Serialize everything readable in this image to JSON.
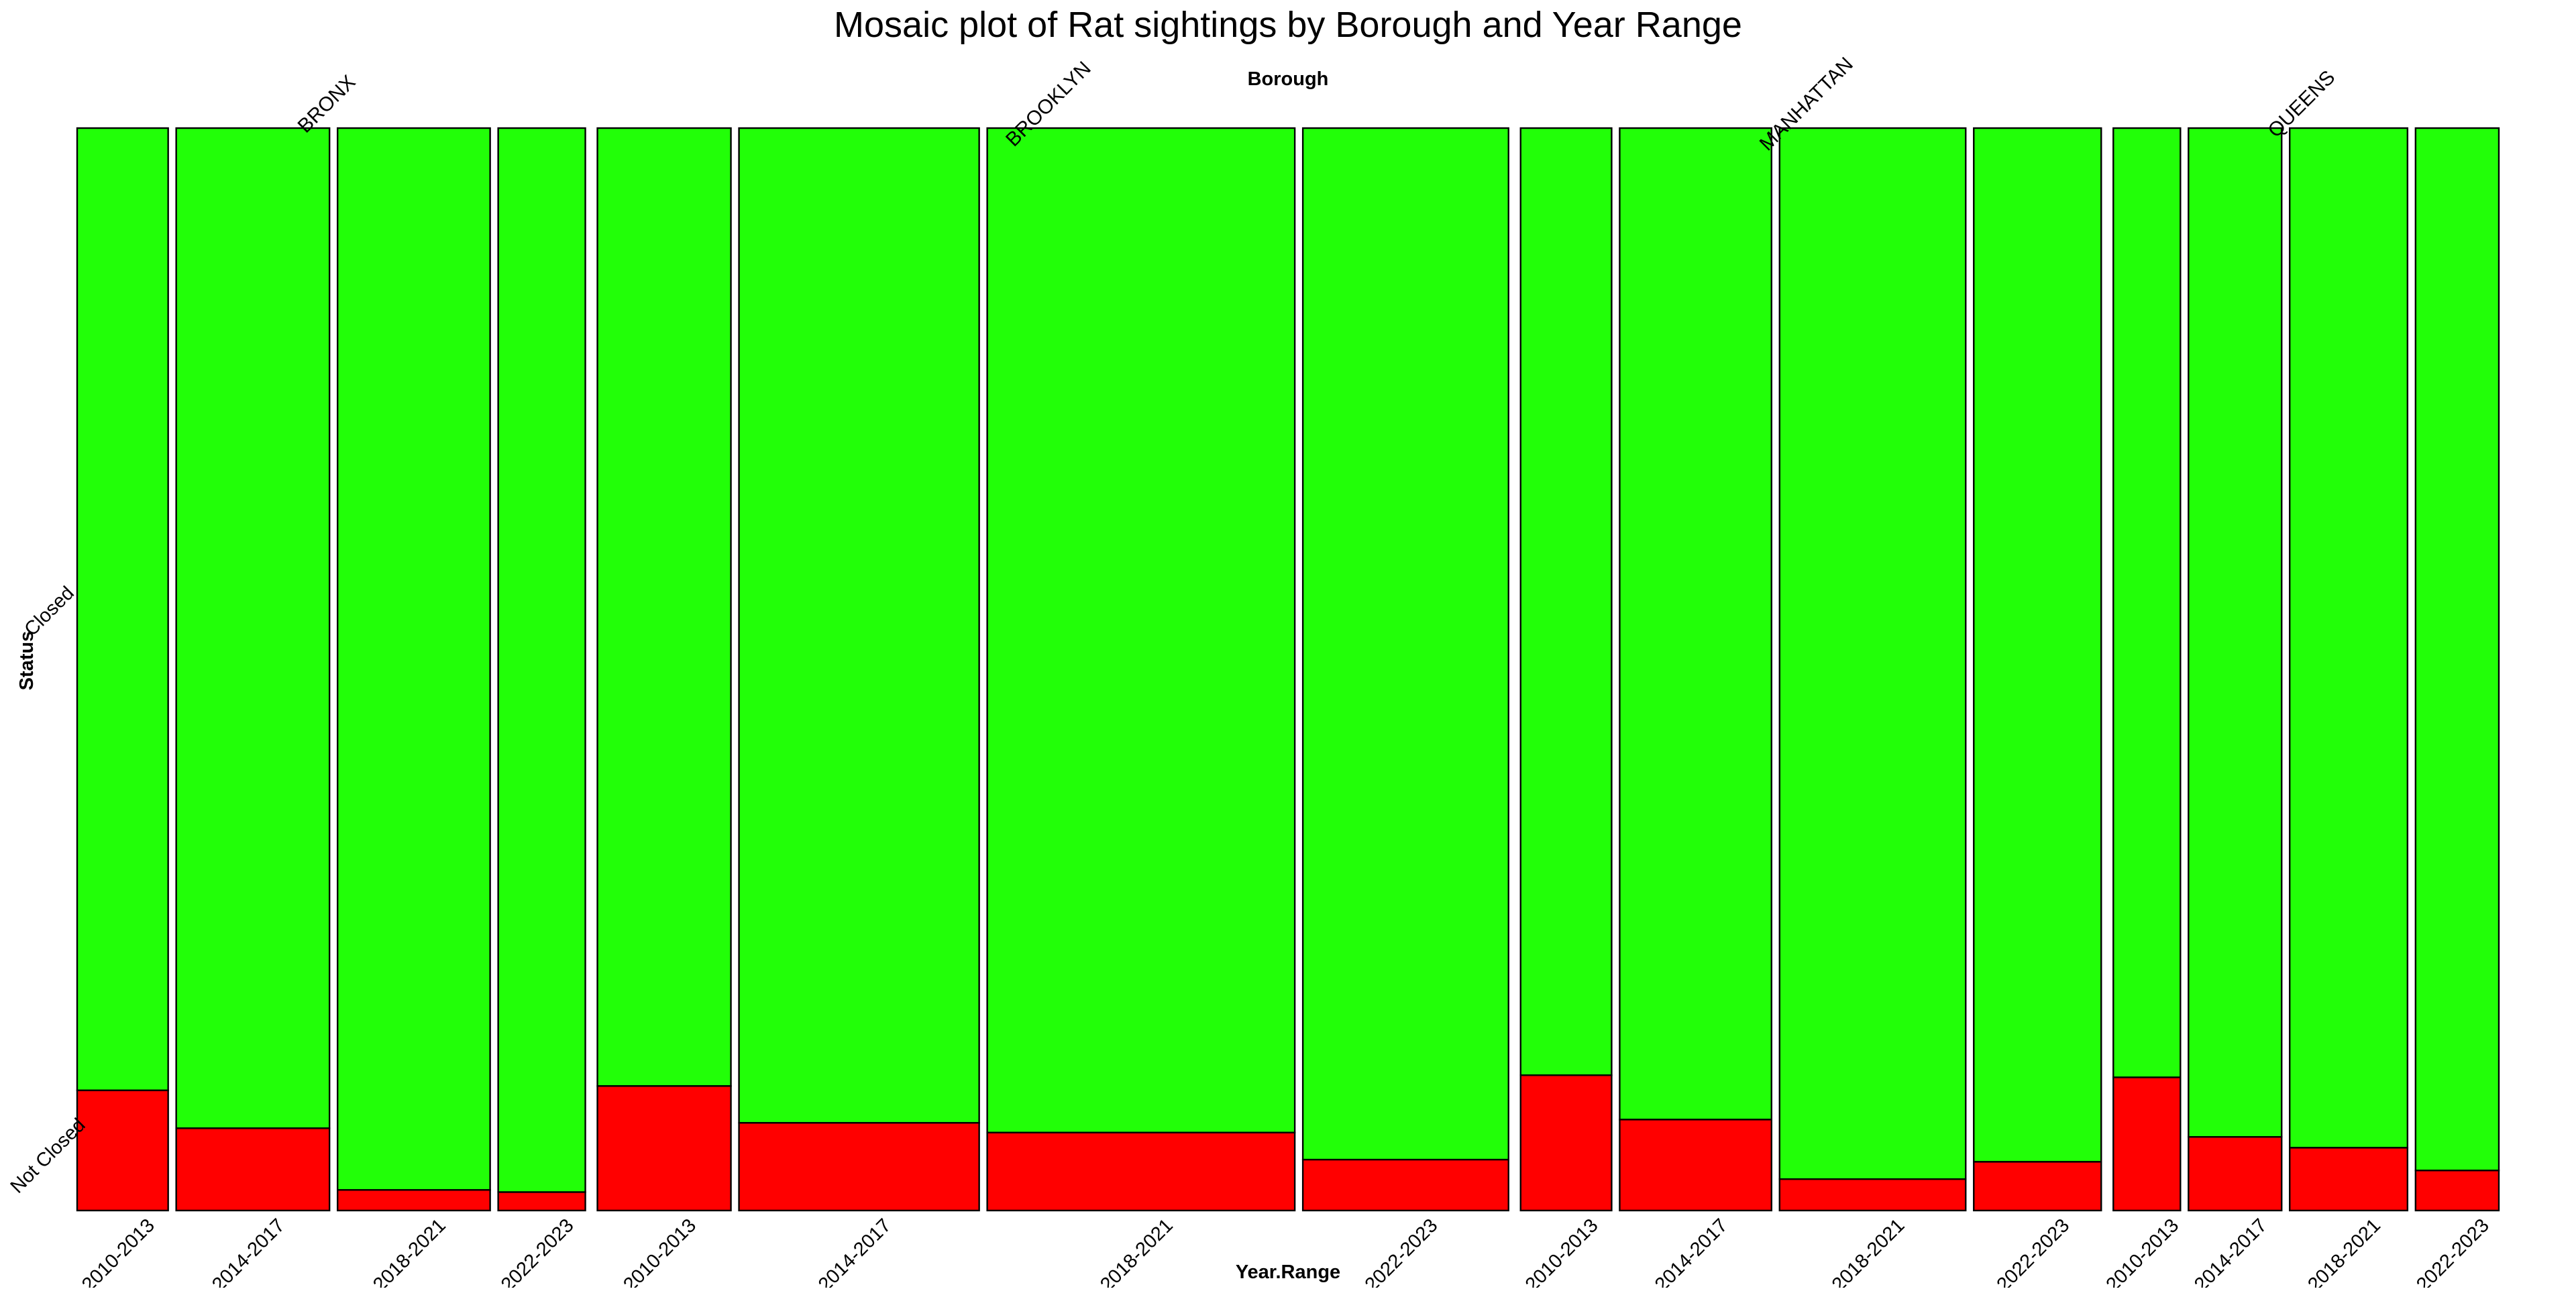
{
  "chart_data": {
    "type": "mosaic",
    "title": "Mosaic plot of Rat sightings by Borough and Year Range",
    "top_variable_label": "Borough",
    "bottom_variable_label": "Year.Range",
    "side_variable_label": "Status",
    "status_levels": [
      "Closed",
      "Not Closed"
    ],
    "colors": {
      "Closed": "#22ff08",
      "Not Closed": "#ff0000",
      "border": "#000000"
    },
    "boroughs": [
      {
        "name": "BRONX",
        "cells": [
          {
            "year_range": "2010-2013",
            "width_share": 0.0377,
            "not_closed_fraction": 0.111
          },
          {
            "year_range": "2014-2017",
            "width_share": 0.0635,
            "not_closed_fraction": 0.076
          },
          {
            "year_range": "2018-2021",
            "width_share": 0.0632,
            "not_closed_fraction": 0.019
          },
          {
            "year_range": "2022-2023",
            "width_share": 0.0361,
            "not_closed_fraction": 0.017
          }
        ]
      },
      {
        "name": "BROOKLYN",
        "cells": [
          {
            "year_range": "2010-2013",
            "width_share": 0.0553,
            "not_closed_fraction": 0.115
          },
          {
            "year_range": "2014-2017",
            "width_share": 0.0995,
            "not_closed_fraction": 0.081
          },
          {
            "year_range": "2018-2021",
            "width_share": 0.1274,
            "not_closed_fraction": 0.072
          },
          {
            "year_range": "2022-2023",
            "width_share": 0.0852,
            "not_closed_fraction": 0.047
          }
        ]
      },
      {
        "name": "MANHATTAN",
        "cells": [
          {
            "year_range": "2010-2013",
            "width_share": 0.0377,
            "not_closed_fraction": 0.125
          },
          {
            "year_range": "2014-2017",
            "width_share": 0.0629,
            "not_closed_fraction": 0.084
          },
          {
            "year_range": "2018-2021",
            "width_share": 0.0771,
            "not_closed_fraction": 0.029
          },
          {
            "year_range": "2022-2023",
            "width_share": 0.0528,
            "not_closed_fraction": 0.045
          }
        ]
      },
      {
        "name": "QUEENS",
        "cells": [
          {
            "year_range": "2010-2013",
            "width_share": 0.0278,
            "not_closed_fraction": 0.123
          },
          {
            "year_range": "2014-2017",
            "width_share": 0.0386,
            "not_closed_fraction": 0.068
          },
          {
            "year_range": "2018-2021",
            "width_share": 0.0488,
            "not_closed_fraction": 0.058
          },
          {
            "year_range": "2022-2023",
            "width_share": 0.0345,
            "not_closed_fraction": 0.037
          }
        ]
      }
    ]
  }
}
